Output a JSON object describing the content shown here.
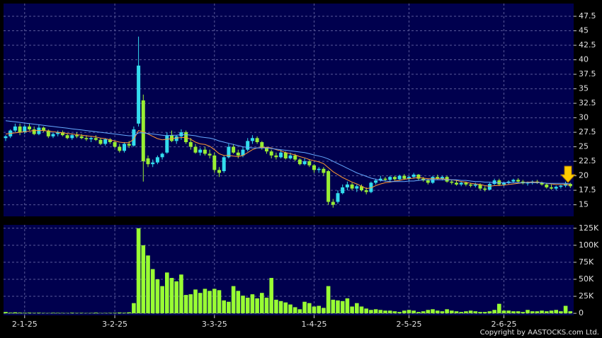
{
  "chart_data": [
    {
      "type": "candlestick",
      "up_color": "#33ddee",
      "down_color": "#99ee33",
      "grid": true,
      "ylim": [
        13,
        49.7
      ],
      "yticks": [
        15,
        17.5,
        20,
        22.5,
        25,
        27.5,
        30,
        32.5,
        35,
        37.5,
        40,
        42.5,
        45,
        47.5
      ],
      "ohlc": [
        [
          26.5,
          27,
          26,
          26.8
        ],
        [
          26.8,
          28,
          26.5,
          27.8
        ],
        [
          27.8,
          29,
          27.5,
          28.5
        ],
        [
          28.5,
          29,
          27,
          27.5
        ],
        [
          27.5,
          28.8,
          27.2,
          28.5
        ],
        [
          28.5,
          29,
          27.8,
          28
        ],
        [
          28,
          28.5,
          27,
          27.2
        ],
        [
          27.2,
          28.8,
          27,
          28.3
        ],
        [
          28.3,
          28.5,
          27.5,
          27.8
        ],
        [
          27.8,
          28,
          26.5,
          26.8
        ],
        [
          26.8,
          27.5,
          26.5,
          27.2
        ],
        [
          27.2,
          27.8,
          26.8,
          27.5
        ],
        [
          27.5,
          27.8,
          26.8,
          27
        ],
        [
          27,
          27.3,
          26.3,
          26.5
        ],
        [
          26.5,
          27.3,
          26.2,
          27
        ],
        [
          27,
          27.5,
          26.5,
          26.8
        ],
        [
          26.8,
          27.2,
          26.3,
          26.5
        ],
        [
          26.5,
          27,
          26,
          26.3
        ],
        [
          26.3,
          26.8,
          25.8,
          26.5
        ],
        [
          26.5,
          27,
          26,
          26.2
        ],
        [
          26.2,
          26.5,
          25.3,
          25.5
        ],
        [
          25.5,
          26.5,
          25.2,
          26.3
        ],
        [
          26.3,
          26.5,
          25.5,
          25.8
        ],
        [
          25.8,
          26,
          24.8,
          25
        ],
        [
          25,
          25.5,
          24,
          24.3
        ],
        [
          24.3,
          25.8,
          24,
          25.5
        ],
        [
          25.5,
          26,
          24.8,
          25.2
        ],
        [
          25.2,
          28.5,
          25,
          28
        ],
        [
          29,
          44,
          28.5,
          39
        ],
        [
          33,
          34,
          19,
          22.5
        ],
        [
          23,
          23.5,
          21.5,
          22
        ],
        [
          22,
          22.8,
          21.5,
          22.3
        ],
        [
          22.3,
          23.5,
          22,
          23.2
        ],
        [
          23.2,
          24,
          22.8,
          23.8
        ],
        [
          24,
          27.5,
          23.8,
          27
        ],
        [
          27,
          27.8,
          25.8,
          26
        ],
        [
          26,
          27,
          25.5,
          26.8
        ],
        [
          26.8,
          28,
          26.2,
          27.5
        ],
        [
          27.5,
          27.8,
          25.5,
          25.8
        ],
        [
          25.8,
          26.5,
          24.5,
          25
        ],
        [
          25,
          25.5,
          23.8,
          24
        ],
        [
          24,
          24.8,
          23.5,
          24.5
        ],
        [
          24.5,
          25,
          23.5,
          23.8
        ],
        [
          23.8,
          24.5,
          23,
          23.5
        ],
        [
          23.5,
          24,
          20.5,
          21
        ],
        [
          21,
          21.5,
          19.8,
          20.5
        ],
        [
          20.8,
          23.5,
          20.5,
          23.2
        ],
        [
          23.2,
          25.5,
          23,
          25
        ],
        [
          25,
          25.5,
          23.8,
          24
        ],
        [
          24,
          24.5,
          23,
          23.5
        ],
        [
          23.5,
          25,
          23.2,
          24.5
        ],
        [
          24.5,
          26.5,
          24.2,
          26
        ],
        [
          26,
          27,
          25.5,
          26.5
        ],
        [
          26.5,
          26.8,
          25.5,
          25.8
        ],
        [
          25.8,
          26,
          24.5,
          24.8
        ],
        [
          24.8,
          25,
          23.8,
          24.2
        ],
        [
          24.2,
          24.5,
          23,
          23.5
        ],
        [
          23.5,
          24,
          22.8,
          23.2
        ],
        [
          23.2,
          24.5,
          23,
          24
        ],
        [
          24,
          24.2,
          22.8,
          23
        ],
        [
          23,
          24,
          22.8,
          23.5
        ],
        [
          23.5,
          23.8,
          22.5,
          22.8
        ],
        [
          22.8,
          23,
          21.8,
          22
        ],
        [
          22,
          23,
          21.8,
          22.5
        ],
        [
          22.5,
          22.8,
          21.5,
          21.8
        ],
        [
          21.8,
          22,
          20.5,
          21
        ],
        [
          21,
          21.5,
          20.5,
          21.2
        ],
        [
          21.2,
          21.5,
          20,
          20.5
        ],
        [
          20.8,
          21,
          15,
          15.5
        ],
        [
          15.5,
          16,
          14.5,
          15
        ],
        [
          15.5,
          17.5,
          15.2,
          17
        ],
        [
          17,
          18.5,
          16.8,
          18
        ],
        [
          18,
          19,
          17.5,
          18.5
        ],
        [
          18.5,
          18.8,
          17.5,
          17.8
        ],
        [
          17.8,
          18.5,
          17.2,
          18.2
        ],
        [
          18.2,
          18.5,
          17.3,
          17.5
        ],
        [
          17.5,
          18,
          16.8,
          17.2
        ],
        [
          17.2,
          19,
          17,
          18.8
        ],
        [
          18.8,
          19.5,
          18.5,
          19.2
        ],
        [
          19.2,
          20,
          19,
          19.5
        ],
        [
          19.5,
          19.8,
          19,
          19.3
        ],
        [
          19.3,
          20,
          19,
          19.8
        ],
        [
          19.8,
          20,
          19.2,
          19.4
        ],
        [
          19.4,
          20.2,
          19.2,
          20
        ],
        [
          20,
          20.3,
          19.3,
          19.5
        ],
        [
          19.5,
          20,
          19,
          19.8
        ],
        [
          19.8,
          20.5,
          19.5,
          20.2
        ],
        [
          20.2,
          20.3,
          19.2,
          19.5
        ],
        [
          19.5,
          19.8,
          19,
          19.2
        ],
        [
          19.2,
          19.5,
          18.5,
          18.8
        ],
        [
          18.8,
          20,
          18.6,
          19.8
        ],
        [
          19.8,
          20.2,
          19.3,
          19.5
        ],
        [
          19.5,
          20,
          19.2,
          19.8
        ],
        [
          19.8,
          20,
          18.8,
          19
        ],
        [
          19,
          19.3,
          18.5,
          18.8
        ],
        [
          18.8,
          19.2,
          18.3,
          18.5
        ],
        [
          18.5,
          19,
          18.2,
          18.8
        ],
        [
          18.8,
          19,
          18.2,
          18.5
        ],
        [
          18.5,
          18.8,
          18,
          18.3
        ],
        [
          18.3,
          18.8,
          18,
          18.5
        ],
        [
          18.5,
          18.7,
          17.5,
          17.8
        ],
        [
          17.8,
          18.2,
          17.3,
          17.6
        ],
        [
          17.6,
          18.8,
          17.5,
          18.6
        ],
        [
          18.6,
          19.5,
          18.4,
          19.2
        ],
        [
          19.2,
          19.5,
          18.3,
          18.5
        ],
        [
          18.5,
          19,
          18.2,
          18.8
        ],
        [
          18.8,
          19.2,
          18.5,
          19
        ],
        [
          19,
          19.5,
          18.8,
          19.3
        ],
        [
          19.3,
          19.6,
          18.8,
          19
        ],
        [
          19,
          19.3,
          18.5,
          18.7
        ],
        [
          18.7,
          19,
          18.3,
          18.8
        ],
        [
          18.8,
          19.2,
          18.5,
          19
        ],
        [
          19,
          19.3,
          18.6,
          18.8
        ],
        [
          18.8,
          19,
          18.3,
          18.5
        ],
        [
          18.5,
          18.7,
          17.8,
          18
        ],
        [
          18,
          18.5,
          17.6,
          17.8
        ],
        [
          17.8,
          18.3,
          17.5,
          18.1
        ],
        [
          18.1,
          18.5,
          17.8,
          18.3
        ],
        [
          18.3,
          19,
          18,
          18.6
        ],
        [
          18.6,
          18.8,
          17.9,
          18.2
        ]
      ],
      "lines": [
        {
          "color": "#ff9933",
          "values": [
            27.2,
            27.3,
            27.4,
            27.5,
            27.6,
            27.7,
            27.8,
            27.8,
            27.8,
            27.7,
            27.6,
            27.5,
            27.4,
            27.3,
            27.2,
            27.1,
            27,
            26.9,
            26.8,
            26.7,
            26.5,
            26.4,
            26.2,
            26,
            25.8,
            25.7,
            25.7,
            26.3,
            27.8,
            27.6,
            27.2,
            26.8,
            26.4,
            26.2,
            26.3,
            26.4,
            26.5,
            26.6,
            26.6,
            26.3,
            25.8,
            25.5,
            25.4,
            25.1,
            24.5,
            23.8,
            23.5,
            23.5,
            23.4,
            23.3,
            23.5,
            24,
            24.5,
            24.8,
            24.9,
            24.9,
            24.8,
            24.5,
            24.3,
            24,
            23.8,
            23.6,
            23.3,
            23.1,
            22.8,
            22.6,
            22.4,
            22.1,
            21.4,
            20.7,
            20.2,
            19.7,
            19.3,
            18.9,
            18.6,
            18.2,
            17.8,
            17.9,
            18.3,
            18.6,
            18.8,
            18.9,
            19.1,
            19.2,
            19.4,
            19.5,
            19.6,
            19.7,
            19.6,
            19.5,
            19.5,
            19.5,
            19.5,
            19.4,
            19.3,
            19.2,
            19,
            18.9,
            18.7,
            18.6,
            18.5,
            18.3,
            18.2,
            18.3,
            18.3,
            18.4,
            18.5,
            18.6,
            18.7,
            18.8,
            18.9,
            18.9,
            18.9,
            18.8,
            18.7,
            18.6,
            18.5,
            18.5,
            18.5,
            18.4
          ]
        },
        {
          "color": "#66aaff",
          "values": [
            29.5,
            29.4,
            29.3,
            29.2,
            29.1,
            29,
            28.9,
            28.8,
            28.7,
            28.6,
            28.5,
            28.4,
            28.3,
            28.2,
            28.1,
            28,
            27.9,
            27.8,
            27.7,
            27.6,
            27.5,
            27.4,
            27.3,
            27.2,
            27.1,
            27,
            26.9,
            26.9,
            27.4,
            27.4,
            27.3,
            27.2,
            27.1,
            27,
            26.9,
            27,
            27,
            27.1,
            27.1,
            27,
            26.9,
            26.7,
            26.6,
            26.5,
            26.3,
            26,
            25.8,
            25.6,
            25.4,
            25.2,
            25,
            24.9,
            24.8,
            24.8,
            24.8,
            24.8,
            24.7,
            24.6,
            24.5,
            24.4,
            24.3,
            24.2,
            24.1,
            24,
            23.8,
            23.6,
            23.4,
            23.2,
            22.9,
            22.5,
            22.1,
            21.7,
            21.3,
            20.9,
            20.5,
            20.2,
            19.9,
            19.6,
            19.4,
            19.2,
            19.1,
            19,
            19,
            19,
            19,
            19.1,
            19.1,
            19.2,
            19.3,
            19.3,
            19.3,
            19.3,
            19.3,
            19.3,
            19.3,
            19.3,
            19.2,
            19.2,
            19.1,
            19,
            19,
            18.9,
            18.9,
            18.8,
            18.8,
            18.8,
            18.8,
            18.8,
            18.8,
            18.8,
            18.8,
            18.8,
            18.8,
            18.8,
            18.7,
            18.7,
            18.7,
            18.7,
            18.7,
            18.6
          ]
        }
      ]
    },
    {
      "type": "bar",
      "color": "#99ff33",
      "grid": true,
      "ylim": [
        -3000,
        130000
      ],
      "yticks": [
        0,
        {
          "value": 25000,
          "label": "25K"
        },
        {
          "value": 50000,
          "label": "50K"
        },
        {
          "value": 75000,
          "label": "75K"
        },
        {
          "value": 100000,
          "label": "100K"
        },
        {
          "value": 125000,
          "label": "125K"
        }
      ],
      "categories": [
        null,
        null,
        null,
        null,
        "2-1-25",
        null,
        null,
        null,
        null,
        null,
        null,
        null,
        null,
        null,
        null,
        null,
        null,
        null,
        null,
        null,
        null,
        null,
        null,
        "3-2-25",
        null,
        null,
        null,
        null,
        null,
        null,
        null,
        null,
        null,
        null,
        null,
        null,
        null,
        null,
        null,
        null,
        null,
        null,
        null,
        null,
        "3-3-25",
        null,
        null,
        null,
        null,
        null,
        null,
        null,
        null,
        null,
        null,
        null,
        null,
        null,
        null,
        null,
        null,
        null,
        null,
        null,
        null,
        "1-4-25",
        null,
        null,
        null,
        null,
        null,
        null,
        null,
        null,
        null,
        null,
        null,
        null,
        null,
        null,
        null,
        null,
        null,
        null,
        null,
        "2-5-25",
        null,
        null,
        null,
        null,
        null,
        null,
        null,
        null,
        null,
        null,
        null,
        null,
        null,
        null,
        null,
        null,
        null,
        null,
        null,
        "2-6-25",
        null,
        null,
        null,
        null,
        null,
        null,
        null,
        null,
        null,
        null,
        null,
        null,
        null,
        null
      ],
      "values": [
        2000,
        1000,
        1500,
        1000,
        800,
        1000,
        700,
        900,
        600,
        500,
        800,
        700,
        600,
        500,
        900,
        600,
        700,
        500,
        600,
        1000,
        500,
        600,
        700,
        800,
        1200,
        900,
        1500,
        15000,
        125000,
        100000,
        85000,
        65000,
        50000,
        40000,
        60000,
        52000,
        47000,
        57000,
        27000,
        28000,
        35000,
        30000,
        36000,
        33000,
        36000,
        34000,
        19000,
        17000,
        40000,
        33000,
        26000,
        23000,
        28000,
        22000,
        30000,
        23000,
        52000,
        20000,
        18000,
        16000,
        13000,
        9000,
        6000,
        17000,
        15000,
        10000,
        11000,
        8000,
        40000,
        20000,
        19000,
        18000,
        22000,
        10000,
        15000,
        10000,
        7000,
        5000,
        6000,
        5000,
        4000,
        4000,
        3000,
        2000,
        4000,
        5000,
        4000,
        2000,
        3000,
        5000,
        6000,
        4000,
        3000,
        6000,
        4000,
        3000,
        2000,
        3000,
        4000,
        3000,
        2000,
        2000,
        3000,
        5000,
        14000,
        4000,
        4000,
        3000,
        3000,
        2000,
        5000,
        3000,
        3000,
        4000,
        3000,
        4000,
        5000,
        3000,
        11000,
        3000
      ]
    }
  ],
  "copyright": "Copyright by AASTOCKS.com Ltd."
}
